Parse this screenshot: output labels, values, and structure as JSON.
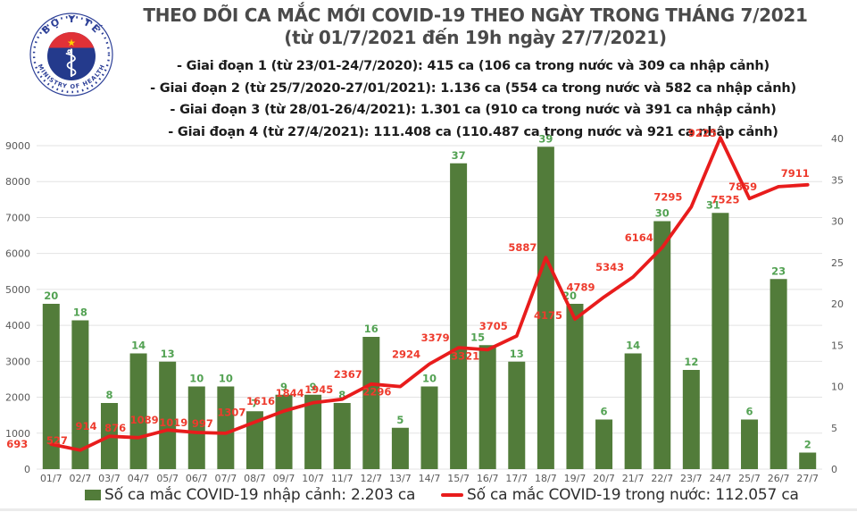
{
  "logo": {
    "top_text": "BỘ Y TẾ",
    "bottom_text": "MINISTRY OF HEALTH",
    "navy": "#243a8c",
    "ring_blue": "#2c3f97",
    "red": "#e03137",
    "star_yellow": "#ffd200"
  },
  "header": {
    "title_line1": "THEO DÕI CA MẮC MỚI COVID-19 THEO NGÀY TRONG THÁNG 7/2021",
    "title_line2": "(từ 01/7/2021 đến 19h ngày 27/7/2021)",
    "bullets": [
      "- Giai đoạn 1 (từ 23/01-24/7/2020): 415 ca (106 ca trong nước và 309 ca nhập cảnh)",
      "- Giai đoạn 2 (từ 25/7/2020-27/01/2021): 1.136 ca (554 ca trong nước và 582 ca nhập cảnh)",
      "- Giai đoạn 3 (từ 28/01-26/4/2021): 1.301 ca (910 ca trong nước và 391 ca nhập cảnh)",
      "- Giai đoạn 4 (từ 27/4/2021): 111.408 ca (110.487 ca trong nước và 921 ca nhập cảnh)"
    ]
  },
  "legend": {
    "bar_label": "Số ca mắc COVID-19 nhập cảnh: 2.203 ca",
    "line_label": "Số ca mắc COVID-19 trong nước: 112.057 ca"
  },
  "colors": {
    "bar": "#527c3a",
    "bar_value_label": "#53a253",
    "line": "#e81c1c",
    "line_value_label": "#ee3b2d",
    "axis_text": "#595959",
    "grid": "#e3e3e3",
    "title": "#4a4a4a",
    "bullet_text": "#1c1c1c"
  },
  "chart_data": {
    "type": "bar",
    "title": "THEO DÕI CA MẮC MỚI COVID-19 THEO NGÀY TRONG THÁNG 7/2021",
    "categories": [
      "01/7",
      "02/7",
      "03/7",
      "04/7",
      "05/7",
      "06/7",
      "07/7",
      "08/7",
      "09/7",
      "10/7",
      "11/7",
      "12/7",
      "13/7",
      "14/7",
      "15/7",
      "16/7",
      "17/7",
      "18/7",
      "19/7",
      "20/7",
      "21/7",
      "22/7",
      "23/7",
      "24/7",
      "25/7",
      "26/7",
      "27/7"
    ],
    "series": [
      {
        "name": "Số ca mắc COVID-19 nhập cảnh",
        "type": "bar",
        "axis": "right",
        "values": [
          20,
          18,
          8,
          14,
          13,
          10,
          10,
          7,
          9,
          9,
          8,
          16,
          5,
          10,
          37,
          15,
          13,
          39,
          20,
          6,
          14,
          30,
          12,
          31,
          6,
          23,
          2
        ]
      },
      {
        "name": "Số ca mắc COVID-19 trong nước",
        "type": "line",
        "axis": "left",
        "values": [
          693,
          527,
          914,
          876,
          1089,
          1019,
          997,
          1307,
          1616,
          1844,
          1945,
          2367,
          2296,
          2924,
          3379,
          3321,
          3705,
          5887,
          4175,
          4789,
          5343,
          6164,
          7295,
          9225,
          7525,
          7859,
          7911
        ]
      }
    ],
    "left_axis": {
      "min": 0,
      "max": 9000,
      "step": 1000,
      "ticks": [
        "0",
        "1000",
        "2000",
        "3000",
        "4000",
        "5000",
        "6000",
        "7000",
        "8000",
        "9000"
      ]
    },
    "right_axis": {
      "min": 0,
      "max": 40,
      "step": 5,
      "ticks": [
        "0",
        "5",
        "10",
        "15",
        "20",
        "25",
        "30",
        "35",
        "40"
      ]
    },
    "grid": true,
    "legend_position": "bottom",
    "xlabel": "",
    "ylabel": ""
  }
}
